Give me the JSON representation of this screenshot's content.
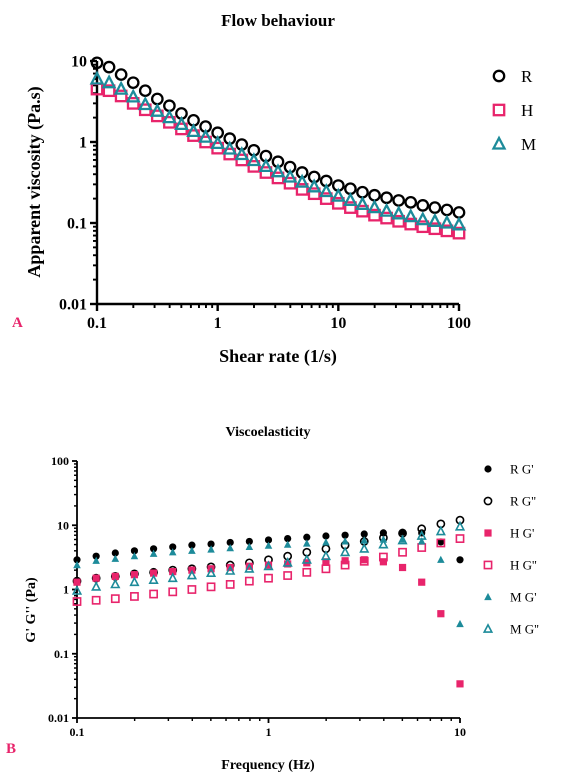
{
  "chart_data": [
    {
      "type": "scatter",
      "panel_label": "A",
      "title": "Flow behaviour",
      "xlabel": "Shear rate (1/s)",
      "ylabel": "Apparent viscosity (Pa.s)",
      "x_scale": "log",
      "y_scale": "log",
      "xlim": [
        0.1,
        100
      ],
      "ylim": [
        0.01,
        10
      ],
      "x_ticks": [
        0.1,
        1,
        10,
        100
      ],
      "x_tick_labels": [
        "0.1",
        "1",
        "10",
        "100"
      ],
      "y_ticks": [
        0.01,
        0.1,
        1,
        10
      ],
      "y_tick_labels": [
        "0.01",
        "0.1",
        "1",
        "10"
      ],
      "grid": false,
      "legend_position": "right",
      "x": [
        0.1,
        0.1259,
        0.1585,
        0.1995,
        0.2512,
        0.3162,
        0.3981,
        0.5012,
        0.631,
        0.7943,
        1.0,
        1.259,
        1.585,
        1.995,
        2.512,
        3.162,
        3.981,
        5.012,
        6.31,
        7.943,
        10.0,
        12.59,
        15.85,
        19.95,
        25.12,
        31.62,
        39.81,
        50.12,
        63.1,
        79.43,
        100.0
      ],
      "series": [
        {
          "name": "R",
          "marker": "circle-open",
          "color": "#000000",
          "values": [
            9.5,
            8.4,
            6.8,
            5.4,
            4.3,
            3.4,
            2.8,
            2.25,
            1.85,
            1.55,
            1.3,
            1.1,
            0.93,
            0.79,
            0.67,
            0.57,
            0.49,
            0.42,
            0.37,
            0.33,
            0.29,
            0.265,
            0.24,
            0.22,
            0.205,
            0.19,
            0.18,
            0.165,
            0.155,
            0.145,
            0.135
          ]
        },
        {
          "name": "H",
          "marker": "square-open",
          "color": "#e8246b",
          "values": [
            4.5,
            4.3,
            3.7,
            3.0,
            2.5,
            2.1,
            1.75,
            1.45,
            1.2,
            1.0,
            0.84,
            0.71,
            0.6,
            0.5,
            0.42,
            0.36,
            0.31,
            0.26,
            0.23,
            0.2,
            0.175,
            0.155,
            0.14,
            0.125,
            0.115,
            0.105,
            0.097,
            0.09,
            0.085,
            0.08,
            0.075
          ]
        },
        {
          "name": "M",
          "marker": "triangle-open",
          "color": "#1d8b9a",
          "values": [
            6.0,
            5.4,
            4.5,
            3.6,
            2.9,
            2.4,
            2.0,
            1.65,
            1.35,
            1.15,
            0.96,
            0.82,
            0.7,
            0.59,
            0.5,
            0.43,
            0.37,
            0.32,
            0.28,
            0.245,
            0.215,
            0.19,
            0.17,
            0.155,
            0.14,
            0.13,
            0.12,
            0.11,
            0.105,
            0.1,
            0.095
          ]
        }
      ]
    },
    {
      "type": "scatter",
      "panel_label": "B",
      "title": "Viscoelasticity",
      "xlabel": "Frequency (Hz)",
      "ylabel": "G' G'' (Pa)",
      "x_scale": "log",
      "y_scale": "log",
      "xlim": [
        0.1,
        10
      ],
      "ylim": [
        0.01,
        100
      ],
      "x_ticks": [
        0.1,
        1,
        10
      ],
      "x_tick_labels": [
        "0.1",
        "1",
        "10"
      ],
      "y_ticks": [
        0.01,
        0.1,
        1,
        10,
        100
      ],
      "y_tick_labels": [
        "0.01",
        "0.1",
        "1",
        "10",
        "100"
      ],
      "grid": false,
      "legend_position": "right",
      "x": [
        0.1,
        0.1259,
        0.1585,
        0.1995,
        0.2512,
        0.3162,
        0.3981,
        0.5012,
        0.631,
        0.7943,
        1.0,
        1.259,
        1.585,
        1.995,
        2.512,
        3.162,
        3.981,
        5.012,
        6.31,
        7.943,
        10.0
      ],
      "series": [
        {
          "name": "R G'",
          "marker": "circle-filled",
          "color": "#000000",
          "values": [
            2.9,
            3.3,
            3.7,
            4.0,
            4.3,
            4.6,
            4.9,
            5.1,
            5.4,
            5.6,
            5.9,
            6.2,
            6.5,
            6.8,
            7.0,
            7.3,
            7.6,
            7.8,
            7.6,
            5.5,
            2.9
          ]
        },
        {
          "name": "R G''",
          "marker": "circle-open",
          "color": "#000000",
          "values": [
            1.35,
            1.5,
            1.6,
            1.75,
            1.85,
            2.0,
            2.1,
            2.25,
            2.4,
            2.6,
            2.9,
            3.3,
            3.8,
            4.3,
            4.9,
            5.6,
            6.4,
            7.5,
            8.8,
            10.5,
            12.0
          ]
        },
        {
          "name": "H G'",
          "marker": "square-filled",
          "color": "#e8246b",
          "values": [
            1.3,
            1.5,
            1.6,
            1.7,
            1.8,
            1.9,
            2.0,
            2.1,
            2.2,
            2.3,
            2.4,
            2.5,
            2.6,
            2.7,
            2.8,
            2.9,
            2.7,
            2.2,
            1.3,
            0.42,
            0.034
          ]
        },
        {
          "name": "H G''",
          "marker": "square-open",
          "color": "#e8246b",
          "values": [
            0.65,
            0.68,
            0.72,
            0.78,
            0.85,
            0.92,
            1.0,
            1.1,
            1.2,
            1.35,
            1.5,
            1.65,
            1.85,
            2.1,
            2.4,
            2.75,
            3.2,
            3.8,
            4.5,
            5.3,
            6.2
          ]
        },
        {
          "name": "M G'",
          "marker": "triangle-filled",
          "color": "#1d8b9a",
          "values": [
            2.4,
            2.8,
            3.0,
            3.3,
            3.6,
            3.8,
            4.0,
            4.2,
            4.4,
            4.6,
            4.8,
            5.0,
            5.2,
            5.4,
            5.6,
            5.8,
            6.0,
            6.0,
            5.6,
            2.9,
            0.29
          ]
        },
        {
          "name": "M G''",
          "marker": "triangle-open",
          "color": "#1d8b9a",
          "values": [
            0.95,
            1.1,
            1.2,
            1.3,
            1.4,
            1.5,
            1.65,
            1.8,
            1.95,
            2.1,
            2.3,
            2.6,
            2.9,
            3.3,
            3.8,
            4.3,
            5.0,
            5.8,
            6.8,
            8.0,
            9.5
          ]
        }
      ]
    }
  ]
}
